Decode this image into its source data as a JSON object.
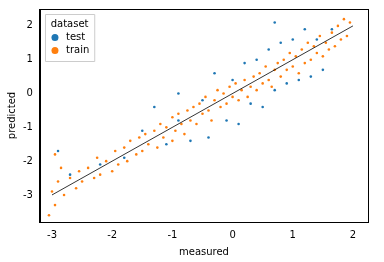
{
  "chart_data": {
    "type": "scatter",
    "x_label": "measured",
    "y_label": "predicted",
    "legend_title": "dataset",
    "legend": "upper left",
    "grid": false,
    "xlim": [
      -3.2,
      2.25
    ],
    "xticks": [
      -3,
      -2,
      -1,
      0,
      1,
      2
    ],
    "ylim": [
      -3.8,
      2.5
    ],
    "yticks": [
      -3,
      -2,
      -1,
      0,
      1,
      2
    ],
    "series": [
      {
        "name": "test",
        "color": "#1f77b4",
        "marker": "circle",
        "x": [
          -2.7,
          -2.2,
          -1.8,
          -1.5,
          -1.3,
          -1.1,
          -0.9,
          -0.7,
          -0.5,
          -0.4,
          -0.3,
          -0.1,
          0.0,
          0.1,
          0.2,
          0.3,
          0.4,
          0.5,
          0.6,
          0.7,
          0.8,
          0.9,
          1.0,
          1.1,
          1.2,
          1.3,
          1.4,
          1.5,
          -0.9,
          0.7,
          1.65,
          -2.9
        ],
        "values": [
          -2.4,
          -2.1,
          -1.9,
          -1.1,
          -0.4,
          -1.5,
          0.0,
          -1.4,
          -0.2,
          -1.3,
          0.6,
          -0.8,
          0.4,
          -0.9,
          0.9,
          -0.3,
          1.0,
          -0.4,
          1.3,
          0.1,
          1.5,
          0.3,
          1.6,
          0.4,
          1.9,
          0.5,
          1.6,
          0.7,
          -0.8,
          2.1,
          1.9,
          -1.7
        ]
      },
      {
        "name": "train",
        "color": "#ff7f0e",
        "marker": "circle",
        "x": [
          -3.0,
          -2.95,
          -2.9,
          -2.85,
          -2.8,
          -2.7,
          -2.6,
          -2.55,
          -2.5,
          -2.4,
          -2.3,
          -2.25,
          -2.2,
          -2.1,
          -2.0,
          -1.95,
          -1.9,
          -1.8,
          -1.75,
          -1.7,
          -1.6,
          -1.55,
          -1.5,
          -1.45,
          -1.4,
          -1.3,
          -1.25,
          -1.2,
          -1.15,
          -1.1,
          -1.0,
          -1.0,
          -0.95,
          -0.9,
          -0.85,
          -0.8,
          -0.75,
          -0.7,
          -0.65,
          -0.6,
          -0.55,
          -0.5,
          -0.45,
          -0.4,
          -0.35,
          -0.3,
          -0.25,
          -0.2,
          -0.15,
          -0.1,
          -0.05,
          0.0,
          0.05,
          0.1,
          0.15,
          0.2,
          0.25,
          0.3,
          0.35,
          0.4,
          0.45,
          0.5,
          0.55,
          0.6,
          0.65,
          0.7,
          0.75,
          0.8,
          0.85,
          0.9,
          0.95,
          1.0,
          1.05,
          1.1,
          1.15,
          1.2,
          1.25,
          1.3,
          1.35,
          1.4,
          1.45,
          1.5,
          1.55,
          1.6,
          1.65,
          1.7,
          1.75,
          1.8,
          1.85,
          1.9,
          1.95,
          -3.05,
          -2.95
        ],
        "values": [
          -2.9,
          -3.3,
          -2.6,
          -2.2,
          -3.0,
          -2.5,
          -2.8,
          -2.3,
          -2.6,
          -2.2,
          -2.5,
          -1.9,
          -2.4,
          -2.0,
          -2.3,
          -1.7,
          -2.1,
          -1.6,
          -2.0,
          -1.4,
          -1.8,
          -1.3,
          -1.7,
          -1.2,
          -1.5,
          -1.1,
          -1.6,
          -0.9,
          -1.3,
          -1.0,
          -1.4,
          -0.7,
          -1.1,
          -0.6,
          -0.9,
          -1.2,
          -0.5,
          -0.8,
          -0.4,
          -0.9,
          -0.3,
          -0.6,
          -0.1,
          -0.5,
          -0.8,
          -0.2,
          0.1,
          -0.4,
          0.0,
          -0.3,
          0.2,
          -0.1,
          0.3,
          -0.2,
          0.1,
          0.4,
          -0.1,
          0.2,
          0.5,
          0.1,
          0.6,
          0.3,
          0.8,
          0.4,
          0.2,
          0.7,
          0.9,
          0.5,
          1.0,
          0.7,
          1.2,
          0.8,
          1.1,
          0.6,
          1.3,
          0.9,
          1.5,
          1.0,
          1.4,
          1.2,
          1.7,
          1.1,
          1.5,
          1.3,
          1.8,
          1.4,
          2.0,
          1.6,
          2.2,
          1.7,
          2.1,
          -3.6,
          -1.8
        ]
      }
    ],
    "reference_line": {
      "x": [
        -3,
        2
      ],
      "values": [
        -3,
        2
      ],
      "color": "#000000",
      "line_style": "solid"
    }
  }
}
